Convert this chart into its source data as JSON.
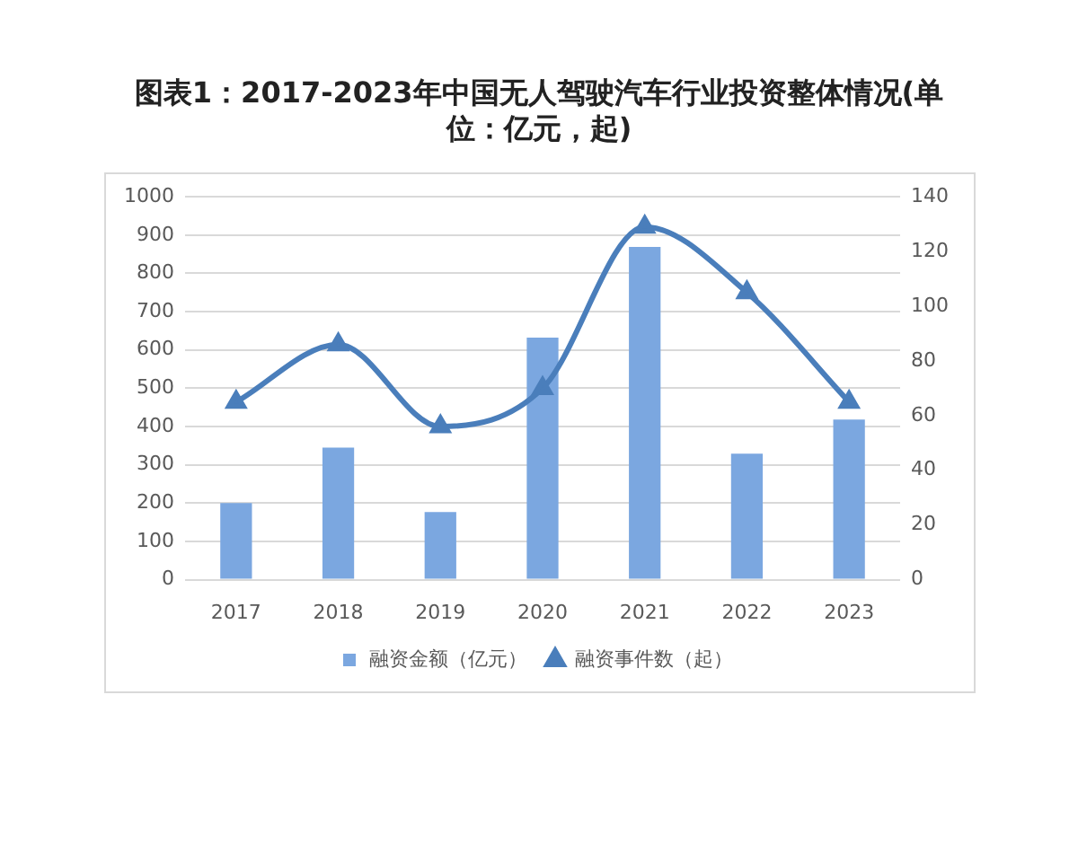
{
  "chart_data": {
    "type": "bar",
    "title": "图表1：2017-2023年中国无人驾驶汽车行业投资整体情况(单位：亿元，起)",
    "categories": [
      "2017",
      "2018",
      "2019",
      "2020",
      "2021",
      "2022",
      "2023"
    ],
    "series": [
      {
        "name": "融资金额（亿元）",
        "color": "#7ba7e0",
        "values": [
          200,
          345,
          177,
          632,
          869,
          329,
          418
        ]
      },
      {
        "name": "融资事件数（起）",
        "type": "line",
        "axis": "y2",
        "color": "#4a7ebb",
        "values": [
          65,
          86,
          56,
          70,
          129,
          105,
          65
        ]
      }
    ],
    "ylim": [
      0,
      1000
    ],
    "yticks": [
      0,
      100,
      200,
      300,
      400,
      500,
      600,
      700,
      800,
      900,
      1000
    ],
    "y2lim": [
      0,
      140
    ],
    "y2ticks": [
      0,
      20,
      40,
      60,
      80,
      100,
      120,
      140
    ],
    "grid": "y",
    "legend": "bottom",
    "marker": "triangle"
  }
}
